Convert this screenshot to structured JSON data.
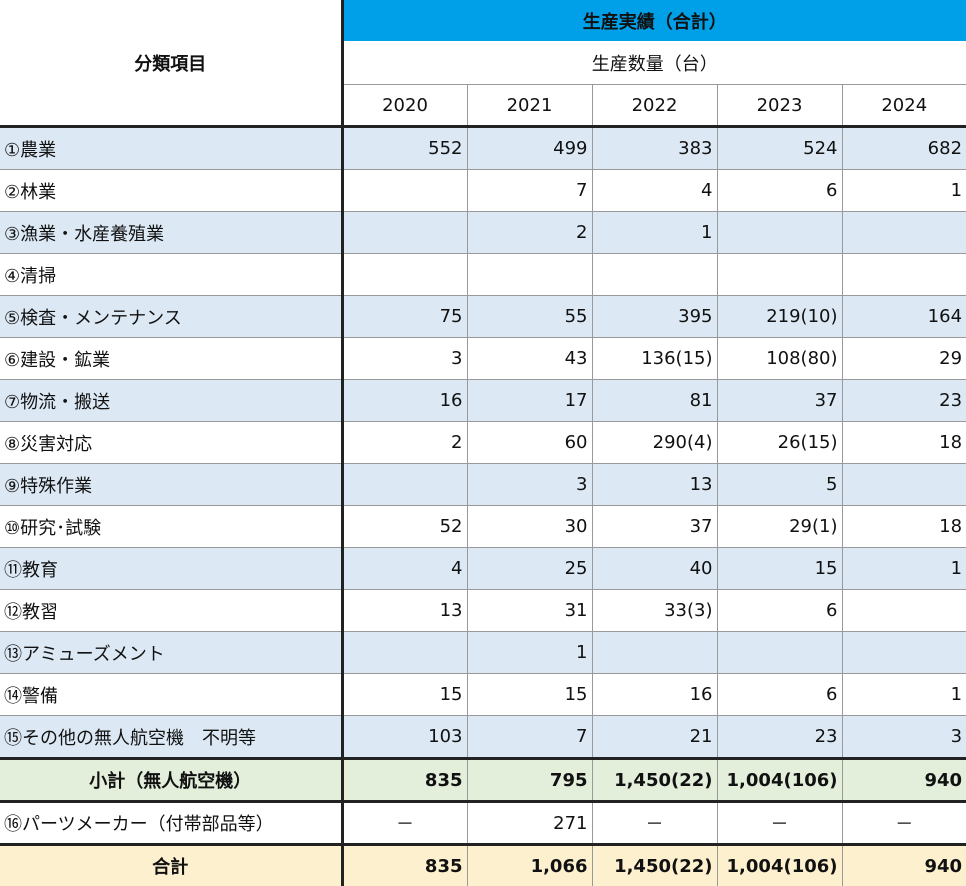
{
  "header": {
    "category_label": "分類項目",
    "group_title": "生産実績（合計）",
    "unit_label": "生産数量（台）",
    "years": [
      "2020",
      "2021",
      "2022",
      "2023",
      "2024"
    ]
  },
  "rows": [
    {
      "name": "①農業",
      "values": [
        "552",
        "499",
        "383",
        "524",
        "682"
      ]
    },
    {
      "name": "②林業",
      "values": [
        "",
        "7",
        "4",
        "6",
        "1"
      ]
    },
    {
      "name": "③漁業・水産養殖業",
      "values": [
        "",
        "2",
        "1",
        "",
        ""
      ]
    },
    {
      "name": "④清掃",
      "values": [
        "",
        "",
        "",
        "",
        ""
      ]
    },
    {
      "name": "⑤検査・メンテナンス",
      "values": [
        "75",
        "55",
        "395",
        "219(10)",
        "164"
      ]
    },
    {
      "name": "⑥建設・鉱業",
      "values": [
        "3",
        "43",
        "136(15)",
        "108(80)",
        "29"
      ]
    },
    {
      "name": "⑦物流・搬送",
      "values": [
        "16",
        "17",
        "81",
        "37",
        "23"
      ]
    },
    {
      "name": "⑧災害対応",
      "values": [
        "2",
        "60",
        "290(4)",
        "26(15)",
        "18"
      ]
    },
    {
      "name": "⑨特殊作業",
      "values": [
        "",
        "3",
        "13",
        "5",
        ""
      ]
    },
    {
      "name": "⑩研究･試験",
      "values": [
        "52",
        "30",
        "37",
        "29(1)",
        "18"
      ]
    },
    {
      "name": "⑪教育",
      "values": [
        "4",
        "25",
        "40",
        "15",
        "1"
      ]
    },
    {
      "name": "⑫教習",
      "values": [
        "13",
        "31",
        "33(3)",
        "6",
        ""
      ]
    },
    {
      "name": "⑬アミューズメント",
      "values": [
        "",
        "1",
        "",
        "",
        ""
      ]
    },
    {
      "name": "⑭警備",
      "values": [
        "15",
        "15",
        "16",
        "6",
        "1"
      ]
    },
    {
      "name": "⑮その他の無人航空機　不明等",
      "values": [
        "103",
        "7",
        "21",
        "23",
        "3"
      ]
    }
  ],
  "subtotal": {
    "name": "小計（無人航空機）",
    "values": [
      "835",
      "795",
      "1,450(22)",
      "1,004(106)",
      "940"
    ]
  },
  "parts": {
    "name": "⑯パーツメーカー（付帯部品等）",
    "values": [
      "－",
      "271",
      "－",
      "－",
      "－"
    ]
  },
  "total": {
    "name": "合計",
    "values": [
      "835",
      "1,066",
      "1,450(22)",
      "1,004(106)",
      "940"
    ]
  },
  "colors": {
    "header_blue": "#00a0e8",
    "row_shade": "#dce9f5",
    "subtotal_bg": "#e3eedb",
    "total_bg": "#fdf0cf"
  }
}
